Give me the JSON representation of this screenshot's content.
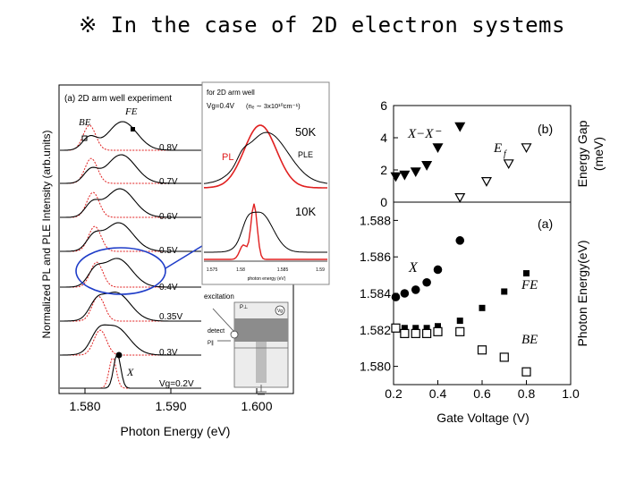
{
  "slide": {
    "title": "※ In the case of 2D electron systems"
  },
  "left_figure": {
    "panel_label": "(a) 2D arm well experiment",
    "ylabel": "Normalized PL and PLE Intensity (arb.units)",
    "xlabel": "Photon Energy (eV)",
    "xticks": [
      "1.580",
      "1.590",
      "1.600"
    ],
    "labels": {
      "be": "BE",
      "fe": "FE",
      "x": "X"
    },
    "voltages": [
      "0.8V",
      "0.7V",
      "0.6V",
      "0.5V",
      "0.4V",
      "0.35V",
      "0.3V",
      "Vg=0.2V"
    ]
  },
  "inset": {
    "line1": "for 2D arm well",
    "line2": "Vg=0.4V",
    "line3": "(nₑ ∼ 3x10¹⁰cm⁻¹)",
    "temp_high": "50K",
    "temp_low": "10K",
    "pl": "PL",
    "ple": "PLE",
    "xticks": [
      "1.575",
      "1.58",
      "1.585",
      "1.59"
    ],
    "xlabel": "photon energy (eV)"
  },
  "schematic": {
    "excitation": "excitation",
    "p_in": "P⊥",
    "detect": "detect",
    "p_out": "P∥",
    "vg": "Vg"
  },
  "right_figure": {
    "panel_b": "(b)",
    "panel_a": "(a)",
    "ylabel_b_1": "Energy Gap",
    "ylabel_b_2": "(meV)",
    "ylabel_a": "Photon Energy(eV)",
    "xlabel": "Gate Voltage (V)",
    "xticks": [
      "0.2",
      "0.4",
      "0.6",
      "0.8",
      "1.0"
    ],
    "yticks_b": [
      "0",
      "2",
      "4",
      "6"
    ],
    "yticks_a": [
      "1.588",
      "1.586",
      "1.584",
      "1.582",
      "1.580"
    ],
    "labels": {
      "xx": "X−X⁻",
      "ef": "E",
      "ef_sub": "f",
      "x": "X",
      "fe": "FE",
      "be": "BE"
    }
  },
  "chart_data": [
    {
      "type": "scatter",
      "title": "(b)",
      "xlabel": "Gate Voltage (V)",
      "ylabel": "Energy Gap (meV)",
      "xlim": [
        0.2,
        1.0
      ],
      "ylim": [
        0,
        6
      ],
      "series": [
        {
          "name": "X-X⁻",
          "marker": "filled-triangle-down",
          "x": [
            0.21,
            0.25,
            0.3,
            0.35,
            0.4,
            0.5
          ],
          "y": [
            1.6,
            1.7,
            1.9,
            2.3,
            3.4,
            4.7
          ]
        },
        {
          "name": "Ef",
          "marker": "open-triangle-down",
          "x": [
            0.5,
            0.62,
            0.72,
            0.8
          ],
          "y": [
            0.3,
            1.3,
            2.4,
            3.4
          ]
        }
      ]
    },
    {
      "type": "scatter",
      "title": "(a)",
      "xlabel": "Gate Voltage (V)",
      "ylabel": "Photon Energy(eV)",
      "xlim": [
        0.2,
        1.0
      ],
      "ylim": [
        1.579,
        1.589
      ],
      "series": [
        {
          "name": "X",
          "marker": "filled-circle",
          "x": [
            0.21,
            0.25,
            0.3,
            0.35,
            0.4,
            0.5
          ],
          "y": [
            1.5838,
            1.584,
            1.5842,
            1.5846,
            1.5853,
            1.5869
          ]
        },
        {
          "name": "FE",
          "marker": "filled-square",
          "x": [
            0.21,
            0.25,
            0.3,
            0.35,
            0.4,
            0.5,
            0.6,
            0.7,
            0.8
          ],
          "y": [
            1.5821,
            1.5821,
            1.5821,
            1.5821,
            1.5822,
            1.5825,
            1.5832,
            1.5841,
            1.5851
          ]
        },
        {
          "name": "BE",
          "marker": "open-square",
          "x": [
            0.21,
            0.25,
            0.3,
            0.35,
            0.4,
            0.5,
            0.6,
            0.7,
            0.8
          ],
          "y": [
            1.5821,
            1.5818,
            1.5818,
            1.5818,
            1.5819,
            1.5819,
            1.5809,
            1.5805,
            1.5797
          ]
        }
      ]
    }
  ]
}
